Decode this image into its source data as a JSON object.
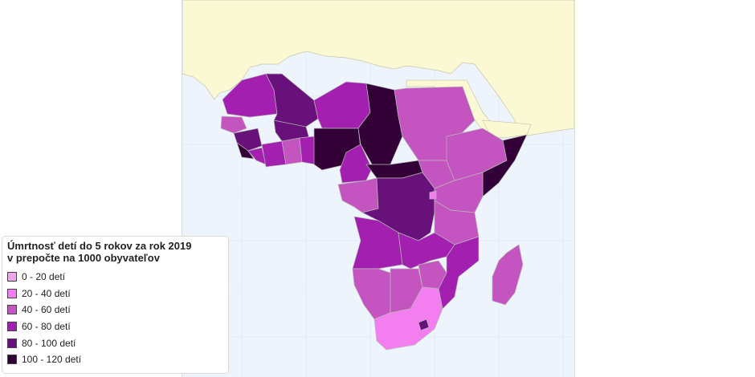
{
  "legend": {
    "title_line1": "Úmrtnosť detí do 5 rokov za rok 2019",
    "title_line2": "v prepočte na 1000 obyvateľov",
    "items": [
      {
        "label": "0 - 20 detí",
        "color": "#f2a6ea"
      },
      {
        "label": "20 - 40 detí",
        "color": "#f37ef0"
      },
      {
        "label": "40 - 60 detí",
        "color": "#c454c0"
      },
      {
        "label": "60 - 80 detí",
        "color": "#a21fb0"
      },
      {
        "label": "80 - 100 detí",
        "color": "#68117a"
      },
      {
        "label": "100 - 120 detí",
        "color": "#320036"
      }
    ]
  },
  "map_colors": {
    "ocean": "#eef4fb",
    "no_data_land": "#fbf9d4",
    "border": "#b9b9b9"
  }
}
